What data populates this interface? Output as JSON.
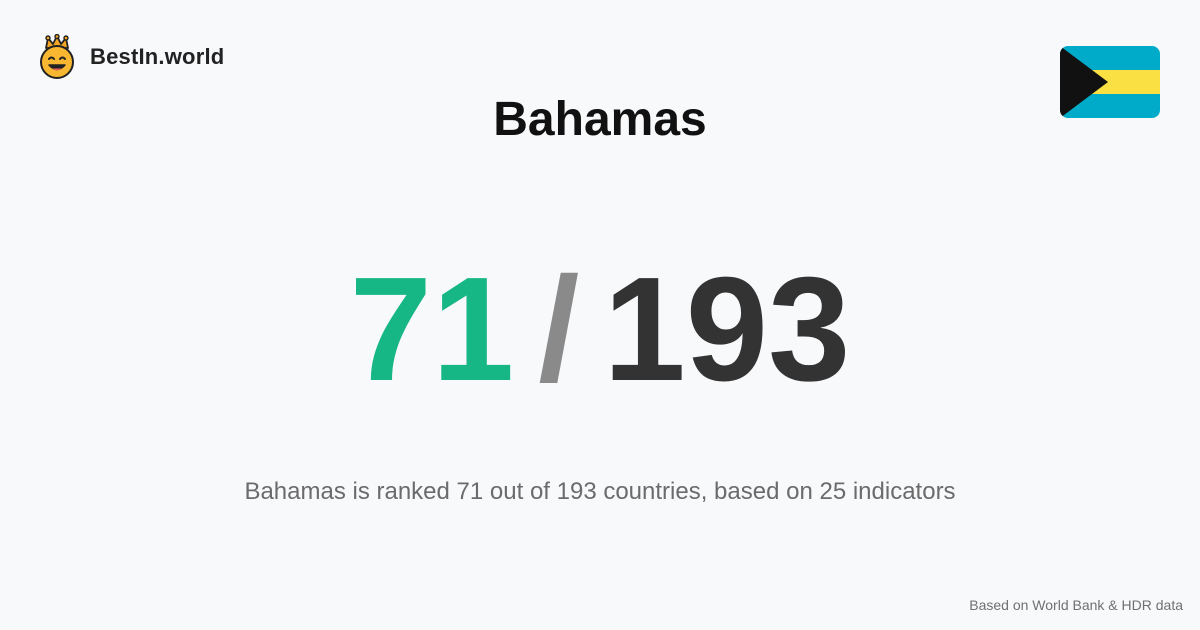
{
  "brand": {
    "logo_icon": "crowned-smiley-logo-icon",
    "name": "BestIn.world"
  },
  "flag": {
    "icon": "bahamas-flag-icon",
    "colors": {
      "aquamarine": "#00abc9",
      "gold": "#fae042",
      "black": "#000000"
    }
  },
  "title": "Bahamas",
  "rank": {
    "value": "71",
    "separator": "/",
    "total": "193",
    "colors": {
      "value": "#16b784",
      "separator": "#8a8a8a",
      "total": "#333333"
    }
  },
  "summary": "Bahamas is ranked 71 out of 193 countries, based on 25 indicators",
  "source": "Based on World Bank & HDR data"
}
